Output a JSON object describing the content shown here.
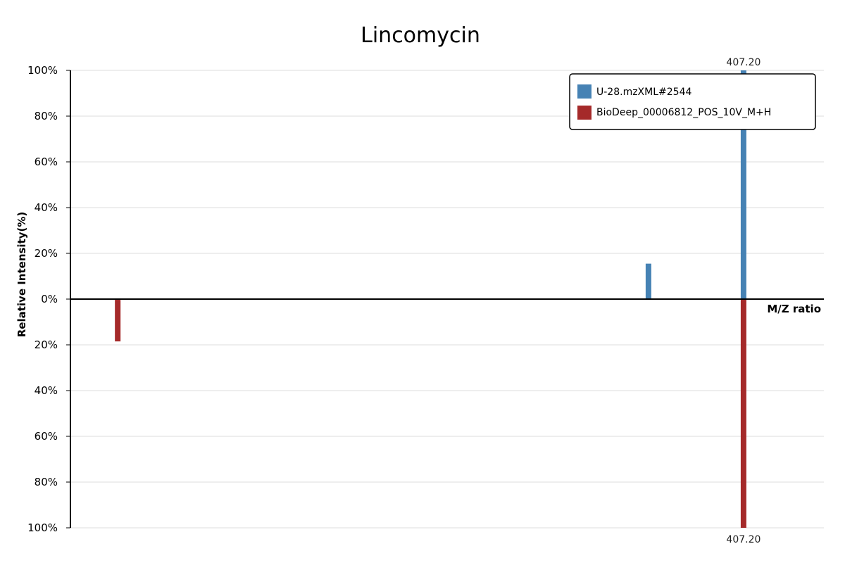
{
  "chart_data": {
    "type": "bar",
    "subtype": "mirror-mass-spectrum",
    "title": "Lincomycin",
    "xlabel": "M/Z ratio",
    "ylabel": "Relative Intensity(%)",
    "xlim": [
      124,
      441
    ],
    "ylim_top": [
      0,
      100
    ],
    "ylim_bottom": [
      0,
      100
    ],
    "y_ticks_top": [
      "0%",
      "20%",
      "40%",
      "60%",
      "80%",
      "100%"
    ],
    "y_ticks_bottom": [
      "20%",
      "40%",
      "60%",
      "80%",
      "100%"
    ],
    "grid": true,
    "legend_position": "top-right",
    "series": [
      {
        "name": "U-28.mzXML#2544",
        "color": "#4682b4",
        "direction": "up",
        "peaks": [
          {
            "mz": 367.2,
            "intensity": 15.5
          },
          {
            "mz": 407.2,
            "intensity": 100,
            "label": "407.20"
          }
        ]
      },
      {
        "name": "BioDeep_00006812_POS_10V_M+H",
        "color": "#a52a2a",
        "direction": "down",
        "peaks": [
          {
            "mz": 143.9,
            "intensity": 18.5
          },
          {
            "mz": 407.2,
            "intensity": 100,
            "label": "407.20"
          }
        ]
      }
    ]
  }
}
